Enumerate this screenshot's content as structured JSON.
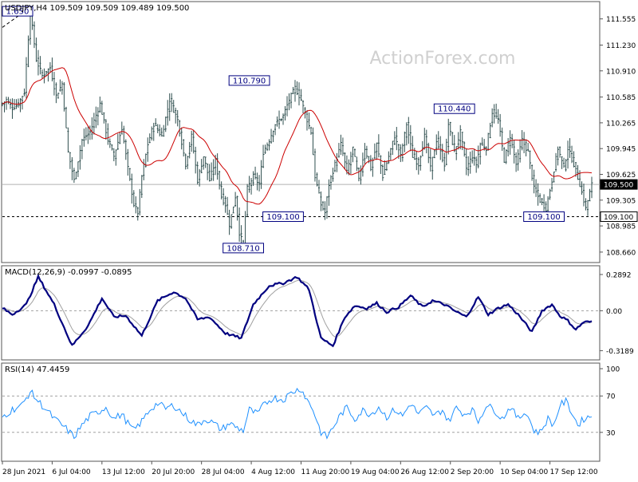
{
  "header": {
    "symbol_line": "USDJPY,H4  109.509 109.509 109.489 109.500",
    "watermark": "ActionForex.com"
  },
  "colors": {
    "background": "#ffffff",
    "frame": "#555555",
    "candle": "#2f4f4f",
    "ma": "#cc0000",
    "macd_line": "#000080",
    "macd_signal": "#a0a0a0",
    "rsi_line": "#1e90ff",
    "grid_dash": "#a0a0a0",
    "label_border": "#000080",
    "price_tag_bg": "#000000"
  },
  "chart_data": [
    {
      "type": "candlestick",
      "name": "main",
      "ylim": [
        108.55,
        111.75
      ],
      "y_ticks": [
        "111.555",
        "111.230",
        "110.910",
        "110.585",
        "110.265",
        "109.945",
        "109.625",
        "109.305",
        "108.985",
        "108.660"
      ],
      "current_price": "109.500",
      "support_level": "109.100",
      "hline_solid": 109.5,
      "hline_dashed": 109.1,
      "annotations": [
        {
          "text": "1.650",
          "price": 111.65,
          "bar": 3
        },
        {
          "text": "110.790",
          "price": 110.79,
          "bar": 124
        },
        {
          "text": "109.100",
          "price": 109.1,
          "bar": 141
        },
        {
          "text": "108.710",
          "price": 108.71,
          "bar": 121
        },
        {
          "text": "110.440",
          "price": 110.44,
          "bar": 227
        },
        {
          "text": "109.100",
          "price": 109.1,
          "bar": 272
        }
      ],
      "trend_line": [
        {
          "bar": 0,
          "price": 111.45
        },
        {
          "bar": 13,
          "price": 111.68
        }
      ],
      "pivots": [
        [
          0,
          110.5
        ],
        [
          2,
          110.55
        ],
        [
          5,
          110.45
        ],
        [
          8,
          110.5
        ],
        [
          11,
          110.65
        ],
        [
          14,
          111.65
        ],
        [
          17,
          111.05
        ],
        [
          20,
          110.85
        ],
        [
          24,
          110.95
        ],
        [
          27,
          110.6
        ],
        [
          30,
          110.75
        ],
        [
          33,
          109.9
        ],
        [
          36,
          109.55
        ],
        [
          40,
          110.05
        ],
        [
          44,
          110.15
        ],
        [
          49,
          110.5
        ],
        [
          53,
          110.05
        ],
        [
          56,
          109.85
        ],
        [
          60,
          110.2
        ],
        [
          63,
          109.7
        ],
        [
          66,
          109.25
        ],
        [
          68,
          109.15
        ],
        [
          70,
          109.6
        ],
        [
          73,
          110.0
        ],
        [
          76,
          110.25
        ],
        [
          80,
          110.1
        ],
        [
          84,
          110.55
        ],
        [
          88,
          110.3
        ],
        [
          92,
          109.75
        ],
        [
          95,
          110.1
        ],
        [
          98,
          109.55
        ],
        [
          101,
          109.85
        ],
        [
          104,
          109.55
        ],
        [
          107,
          109.8
        ],
        [
          110,
          109.35
        ],
        [
          112,
          109.25
        ],
        [
          114,
          109.0
        ],
        [
          117,
          109.35
        ],
        [
          119,
          108.9
        ],
        [
          121,
          108.75
        ],
        [
          123,
          109.45
        ],
        [
          126,
          109.6
        ],
        [
          129,
          109.5
        ],
        [
          131,
          109.9
        ],
        [
          134,
          110.05
        ],
        [
          137,
          110.25
        ],
        [
          141,
          110.35
        ],
        [
          144,
          110.55
        ],
        [
          147,
          110.7
        ],
        [
          150,
          110.55
        ],
        [
          153,
          110.3
        ],
        [
          155,
          110.15
        ],
        [
          157,
          109.6
        ],
        [
          160,
          109.25
        ],
        [
          162,
          109.15
        ],
        [
          164,
          109.5
        ],
        [
          167,
          109.75
        ],
        [
          170,
          110.0
        ],
        [
          173,
          109.65
        ],
        [
          176,
          109.95
        ],
        [
          179,
          109.55
        ],
        [
          182,
          109.95
        ],
        [
          185,
          109.7
        ],
        [
          188,
          110.0
        ],
        [
          191,
          109.6
        ],
        [
          194,
          109.85
        ],
        [
          197,
          110.1
        ],
        [
          200,
          109.85
        ],
        [
          203,
          110.25
        ],
        [
          206,
          109.85
        ],
        [
          209,
          109.75
        ],
        [
          212,
          110.1
        ],
        [
          215,
          109.7
        ],
        [
          218,
          110.05
        ],
        [
          222,
          109.75
        ],
        [
          224,
          110.25
        ],
        [
          227,
          109.9
        ],
        [
          230,
          110.15
        ],
        [
          233,
          109.7
        ],
        [
          236,
          109.85
        ],
        [
          238,
          109.75
        ],
        [
          240,
          110.0
        ],
        [
          243,
          109.95
        ],
        [
          246,
          110.4
        ],
        [
          249,
          110.3
        ],
        [
          252,
          109.8
        ],
        [
          255,
          110.1
        ],
        [
          258,
          109.75
        ],
        [
          261,
          110.05
        ],
        [
          264,
          109.9
        ],
        [
          267,
          109.45
        ],
        [
          270,
          109.3
        ],
        [
          273,
          109.2
        ],
        [
          276,
          109.55
        ],
        [
          279,
          109.95
        ],
        [
          282,
          109.7
        ],
        [
          284,
          109.95
        ],
        [
          287,
          109.75
        ],
        [
          290,
          109.5
        ],
        [
          293,
          109.2
        ],
        [
          296,
          109.5
        ]
      ]
    },
    {
      "type": "line",
      "name": "MACD(12,26,9)",
      "title_text": "MACD(12,26,9) -0.0997 -0.0895",
      "ylim": [
        -0.38,
        0.34
      ],
      "y_ticks": [
        "0.2892",
        "0.00",
        "-0.3189"
      ],
      "series_pivots": [
        [
          0,
          0.02
        ],
        [
          5,
          -0.03
        ],
        [
          12,
          0.05
        ],
        [
          18,
          0.27
        ],
        [
          26,
          0.05
        ],
        [
          35,
          -0.28
        ],
        [
          43,
          -0.12
        ],
        [
          50,
          0.1
        ],
        [
          56,
          -0.05
        ],
        [
          62,
          -0.04
        ],
        [
          70,
          -0.2
        ],
        [
          78,
          0.08
        ],
        [
          86,
          0.15
        ],
        [
          92,
          0.1
        ],
        [
          98,
          -0.07
        ],
        [
          104,
          -0.05
        ],
        [
          112,
          -0.18
        ],
        [
          120,
          -0.22
        ],
        [
          126,
          0.05
        ],
        [
          134,
          0.2
        ],
        [
          141,
          0.22
        ],
        [
          148,
          0.27
        ],
        [
          154,
          0.17
        ],
        [
          160,
          -0.22
        ],
        [
          166,
          -0.28
        ],
        [
          172,
          -0.05
        ],
        [
          177,
          0.04
        ],
        [
          183,
          0.02
        ],
        [
          188,
          0.06
        ],
        [
          193,
          -0.01
        ],
        [
          199,
          0.03
        ],
        [
          205,
          0.12
        ],
        [
          211,
          0.03
        ],
        [
          216,
          0.08
        ],
        [
          222,
          0.05
        ],
        [
          227,
          0.0
        ],
        [
          233,
          -0.05
        ],
        [
          239,
          0.11
        ],
        [
          244,
          -0.03
        ],
        [
          249,
          0.02
        ],
        [
          254,
          0.05
        ],
        [
          259,
          -0.03
        ],
        [
          266,
          -0.17
        ],
        [
          271,
          0.0
        ],
        [
          276,
          0.05
        ],
        [
          280,
          -0.04
        ],
        [
          284,
          -0.08
        ],
        [
          288,
          -0.15
        ],
        [
          292,
          -0.09
        ]
      ]
    },
    {
      "type": "line",
      "name": "RSI(14)",
      "title_text": "RSI(14) 47.4459",
      "ylim": [
        0,
        100
      ],
      "y_ticks": [
        "100",
        "70",
        "30"
      ],
      "levels": [
        70,
        30
      ],
      "series_pivots": [
        [
          0,
          47
        ],
        [
          5,
          55
        ],
        [
          10,
          60
        ],
        [
          14,
          75
        ],
        [
          18,
          64
        ],
        [
          22,
          55
        ],
        [
          26,
          45
        ],
        [
          32,
          34
        ],
        [
          36,
          25
        ],
        [
          40,
          38
        ],
        [
          44,
          48
        ],
        [
          48,
          52
        ],
        [
          52,
          58
        ],
        [
          56,
          45
        ],
        [
          60,
          50
        ],
        [
          63,
          40
        ],
        [
          66,
          32
        ],
        [
          70,
          42
        ],
        [
          74,
          55
        ],
        [
          78,
          62
        ],
        [
          82,
          56
        ],
        [
          86,
          60
        ],
        [
          90,
          52
        ],
        [
          94,
          44
        ],
        [
          98,
          38
        ],
        [
          102,
          45
        ],
        [
          106,
          40
        ],
        [
          110,
          33
        ],
        [
          114,
          40
        ],
        [
          118,
          35
        ],
        [
          121,
          32
        ],
        [
          124,
          55
        ],
        [
          128,
          50
        ],
        [
          132,
          62
        ],
        [
          136,
          68
        ],
        [
          141,
          66
        ],
        [
          146,
          75
        ],
        [
          150,
          78
        ],
        [
          153,
          66
        ],
        [
          156,
          55
        ],
        [
          160,
          30
        ],
        [
          163,
          25
        ],
        [
          166,
          35
        ],
        [
          170,
          50
        ],
        [
          173,
          57
        ],
        [
          177,
          45
        ],
        [
          181,
          54
        ],
        [
          185,
          50
        ],
        [
          189,
          58
        ],
        [
          193,
          47
        ],
        [
          197,
          55
        ],
        [
          201,
          48
        ],
        [
          205,
          62
        ],
        [
          209,
          50
        ],
        [
          213,
          57
        ],
        [
          217,
          48
        ],
        [
          221,
          55
        ],
        [
          224,
          42
        ],
        [
          228,
          57
        ],
        [
          232,
          50
        ],
        [
          236,
          55
        ],
        [
          239,
          42
        ],
        [
          243,
          60
        ],
        [
          247,
          55
        ],
        [
          251,
          45
        ],
        [
          255,
          58
        ],
        [
          259,
          45
        ],
        [
          263,
          53
        ],
        [
          267,
          32
        ],
        [
          270,
          30
        ],
        [
          274,
          45
        ],
        [
          277,
          38
        ],
        [
          280,
          60
        ],
        [
          283,
          64
        ],
        [
          286,
          52
        ],
        [
          289,
          38
        ],
        [
          292,
          45
        ],
        [
          296,
          48
        ]
      ]
    }
  ],
  "x_axis": {
    "bars": 297,
    "labels": [
      {
        "text": "28 Jun 2021",
        "bar": 0
      },
      {
        "text": "6 Jul 04:00",
        "bar": 25
      },
      {
        "text": "13 Jul 12:00",
        "bar": 50
      },
      {
        "text": "20 Jul 20:00",
        "bar": 75
      },
      {
        "text": "28 Jul 04:00",
        "bar": 100
      },
      {
        "text": "4 Aug 12:00",
        "bar": 125
      },
      {
        "text": "11 Aug 20:00",
        "bar": 150
      },
      {
        "text": "19 Aug 04:00",
        "bar": 175
      },
      {
        "text": "26 Aug 12:00",
        "bar": 200
      },
      {
        "text": "2 Sep 20:00",
        "bar": 225
      },
      {
        "text": "10 Sep 04:00",
        "bar": 250
      },
      {
        "text": "17 Sep 12:00",
        "bar": 275
      }
    ]
  }
}
